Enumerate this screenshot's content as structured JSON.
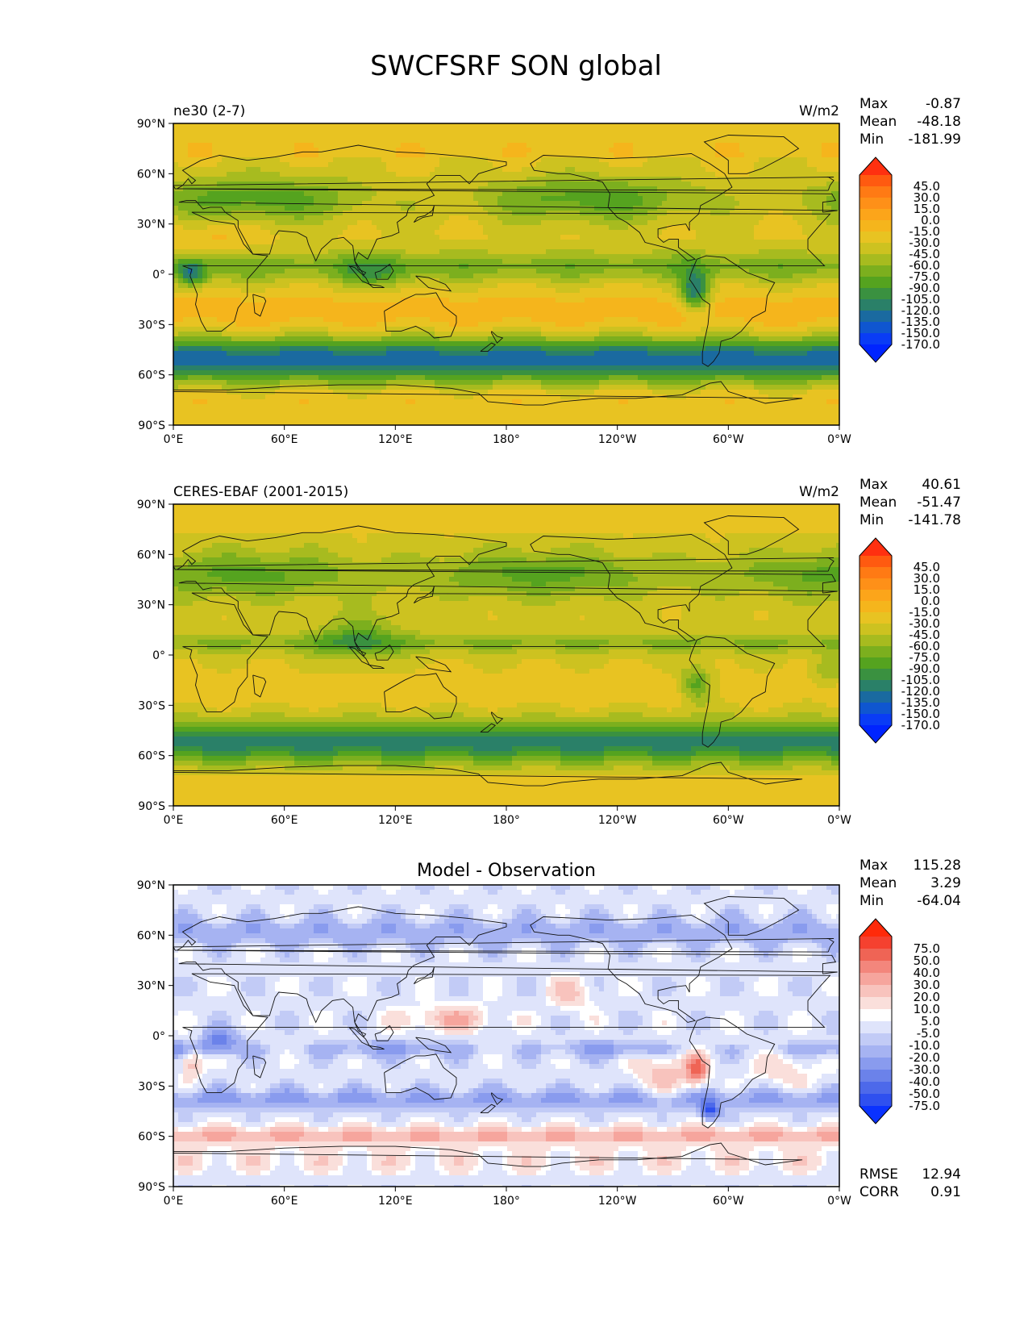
{
  "figure": {
    "title": "SWCFSRF SON global",
    "panels": [
      {
        "left_title": "ne30 (2-7)",
        "center_title": "",
        "units": "W/m2",
        "stats": [
          {
            "label": "Max",
            "value": "-0.87"
          },
          {
            "label": "Mean",
            "value": "-48.18"
          },
          {
            "label": "Min",
            "value": "-181.99"
          }
        ],
        "extra_stats": [],
        "colorbar": {
          "labels": [
            "45.0",
            "30.0",
            "15.0",
            "0.0",
            "-15.0",
            "-30.0",
            "-45.0",
            "-60.0",
            "-75.0",
            "-90.0",
            "-105.0",
            "-120.0",
            "-135.0",
            "-150.0",
            "-170.0"
          ],
          "colors": [
            "#ff3010",
            "#ff5a10",
            "#ff7a14",
            "#fe9018",
            "#fca51a",
            "#f5b51c",
            "#e8c322",
            "#cdc220",
            "#a7bb1f",
            "#7caf1e",
            "#55a31f",
            "#3a9140",
            "#2a8068",
            "#1a6aa0",
            "#0f56d0",
            "#0a3cf5",
            "#0024ff"
          ]
        },
        "field": "model"
      },
      {
        "left_title": "CERES-EBAF (2001-2015)",
        "center_title": "",
        "units": "W/m2",
        "stats": [
          {
            "label": "Max",
            "value": "40.61"
          },
          {
            "label": "Mean",
            "value": "-51.47"
          },
          {
            "label": "Min",
            "value": "-141.78"
          }
        ],
        "extra_stats": [],
        "colorbar": {
          "labels": [
            "45.0",
            "30.0",
            "15.0",
            "0.0",
            "-15.0",
            "-30.0",
            "-45.0",
            "-60.0",
            "-75.0",
            "-90.0",
            "-105.0",
            "-120.0",
            "-135.0",
            "-150.0",
            "-170.0"
          ],
          "colors": [
            "#ff3010",
            "#ff5a10",
            "#ff7a14",
            "#fe9018",
            "#fca51a",
            "#f5b51c",
            "#e8c322",
            "#cdc220",
            "#a7bb1f",
            "#7caf1e",
            "#55a31f",
            "#3a9140",
            "#2a8068",
            "#1a6aa0",
            "#0f56d0",
            "#0a3cf5",
            "#0024ff"
          ]
        },
        "field": "obs"
      },
      {
        "left_title": "",
        "center_title": "Model - Observation",
        "units": "",
        "stats": [
          {
            "label": "Max",
            "value": "115.28"
          },
          {
            "label": "Mean",
            "value": "3.29"
          },
          {
            "label": "Min",
            "value": "-64.04"
          }
        ],
        "extra_stats": [
          {
            "label": "RMSE",
            "value": "12.94"
          },
          {
            "label": "CORR",
            "value": "0.91"
          }
        ],
        "colorbar": {
          "labels": [
            "75.0",
            "50.0",
            "40.0",
            "30.0",
            "20.0",
            "10.0",
            "5.0",
            "-5.0",
            "-10.0",
            "-20.0",
            "-30.0",
            "-40.0",
            "-50.0",
            "-75.0"
          ],
          "colors": [
            "#ff2a0a",
            "#f5412f",
            "#ef6455",
            "#f3867c",
            "#f6a59d",
            "#f8c3bd",
            "#fadfdb",
            "#ffffff",
            "#dfe4fb",
            "#c2cbf6",
            "#a6b3f2",
            "#899bee",
            "#6b82ea",
            "#4d69ea",
            "#2f50ef",
            "#0a32ff"
          ]
        },
        "field": "diff"
      }
    ],
    "lat_ticks": [
      "90°N",
      "60°N",
      "30°N",
      "0°",
      "30°S",
      "60°S",
      "90°S"
    ],
    "lon_ticks": [
      "0°E",
      "60°E",
      "120°E",
      "180°",
      "120°W",
      "60°W",
      "0°W"
    ]
  }
}
